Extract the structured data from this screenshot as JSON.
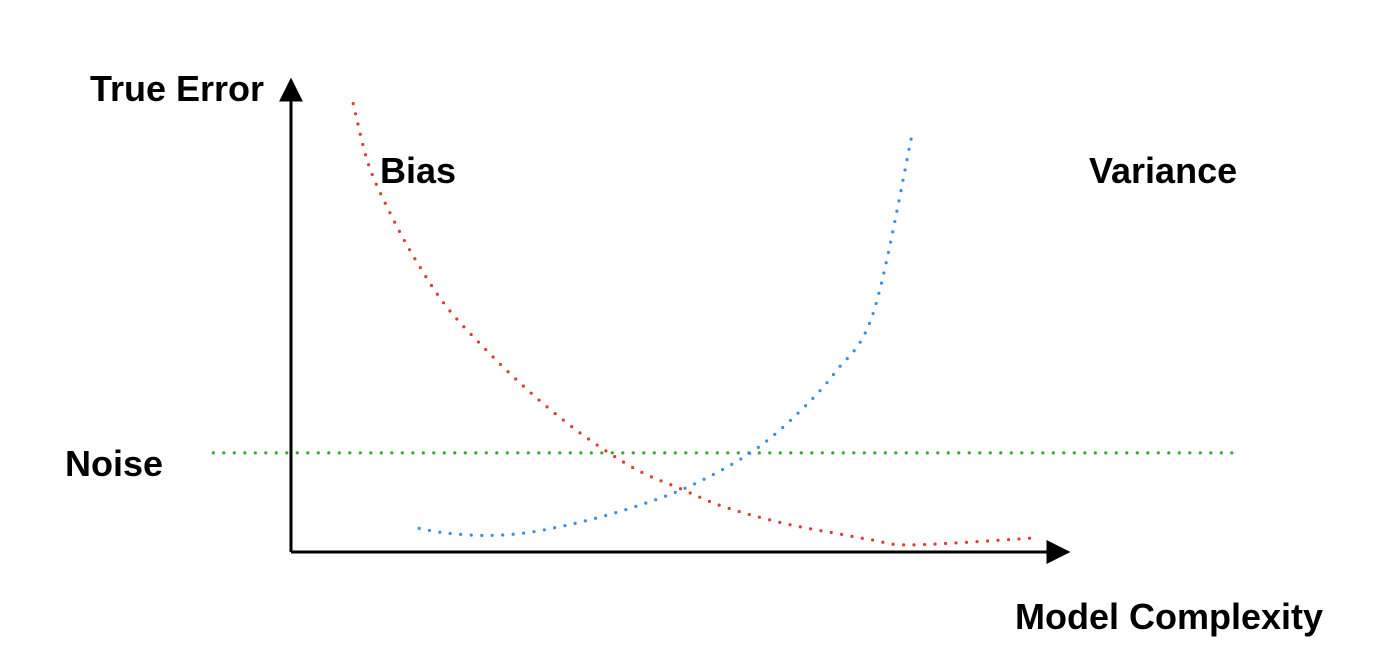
{
  "chart_data": {
    "type": "line",
    "ylabel": "True Error",
    "xlabel": "Model Complexity",
    "grid": false,
    "legend": "none",
    "xlim": [
      0,
      1
    ],
    "ylim": [
      0,
      1
    ],
    "series": [
      {
        "name": "Bias",
        "color": "#e03c2e",
        "style": "dotted",
        "points": [
          [
            0.08,
            0.95
          ],
          [
            0.1,
            0.82
          ],
          [
            0.13,
            0.71
          ],
          [
            0.16,
            0.62
          ],
          [
            0.2,
            0.52
          ],
          [
            0.25,
            0.43
          ],
          [
            0.3,
            0.35
          ],
          [
            0.35,
            0.28
          ],
          [
            0.4,
            0.22
          ],
          [
            0.45,
            0.17
          ],
          [
            0.5,
            0.135
          ],
          [
            0.55,
            0.1
          ],
          [
            0.6,
            0.075
          ],
          [
            0.65,
            0.055
          ],
          [
            0.7,
            0.04
          ],
          [
            0.75,
            0.025
          ],
          [
            0.8,
            0.015
          ],
          [
            0.96,
            0.03
          ]
        ]
      },
      {
        "name": "Variance",
        "color": "#3a8ee6",
        "style": "dotted",
        "points": [
          [
            0.165,
            0.05
          ],
          [
            0.2,
            0.04
          ],
          [
            0.25,
            0.035
          ],
          [
            0.3,
            0.04
          ],
          [
            0.35,
            0.055
          ],
          [
            0.4,
            0.075
          ],
          [
            0.45,
            0.1
          ],
          [
            0.5,
            0.13
          ],
          [
            0.55,
            0.17
          ],
          [
            0.6,
            0.22
          ],
          [
            0.65,
            0.29
          ],
          [
            0.7,
            0.38
          ],
          [
            0.75,
            0.51
          ],
          [
            0.8,
            0.89
          ]
        ]
      },
      {
        "name": "Noise",
        "color": "#3aa832",
        "style": "dotted",
        "points": [
          [
            -0.1,
            0.21
          ],
          [
            1.22,
            0.21
          ]
        ]
      }
    ]
  }
}
